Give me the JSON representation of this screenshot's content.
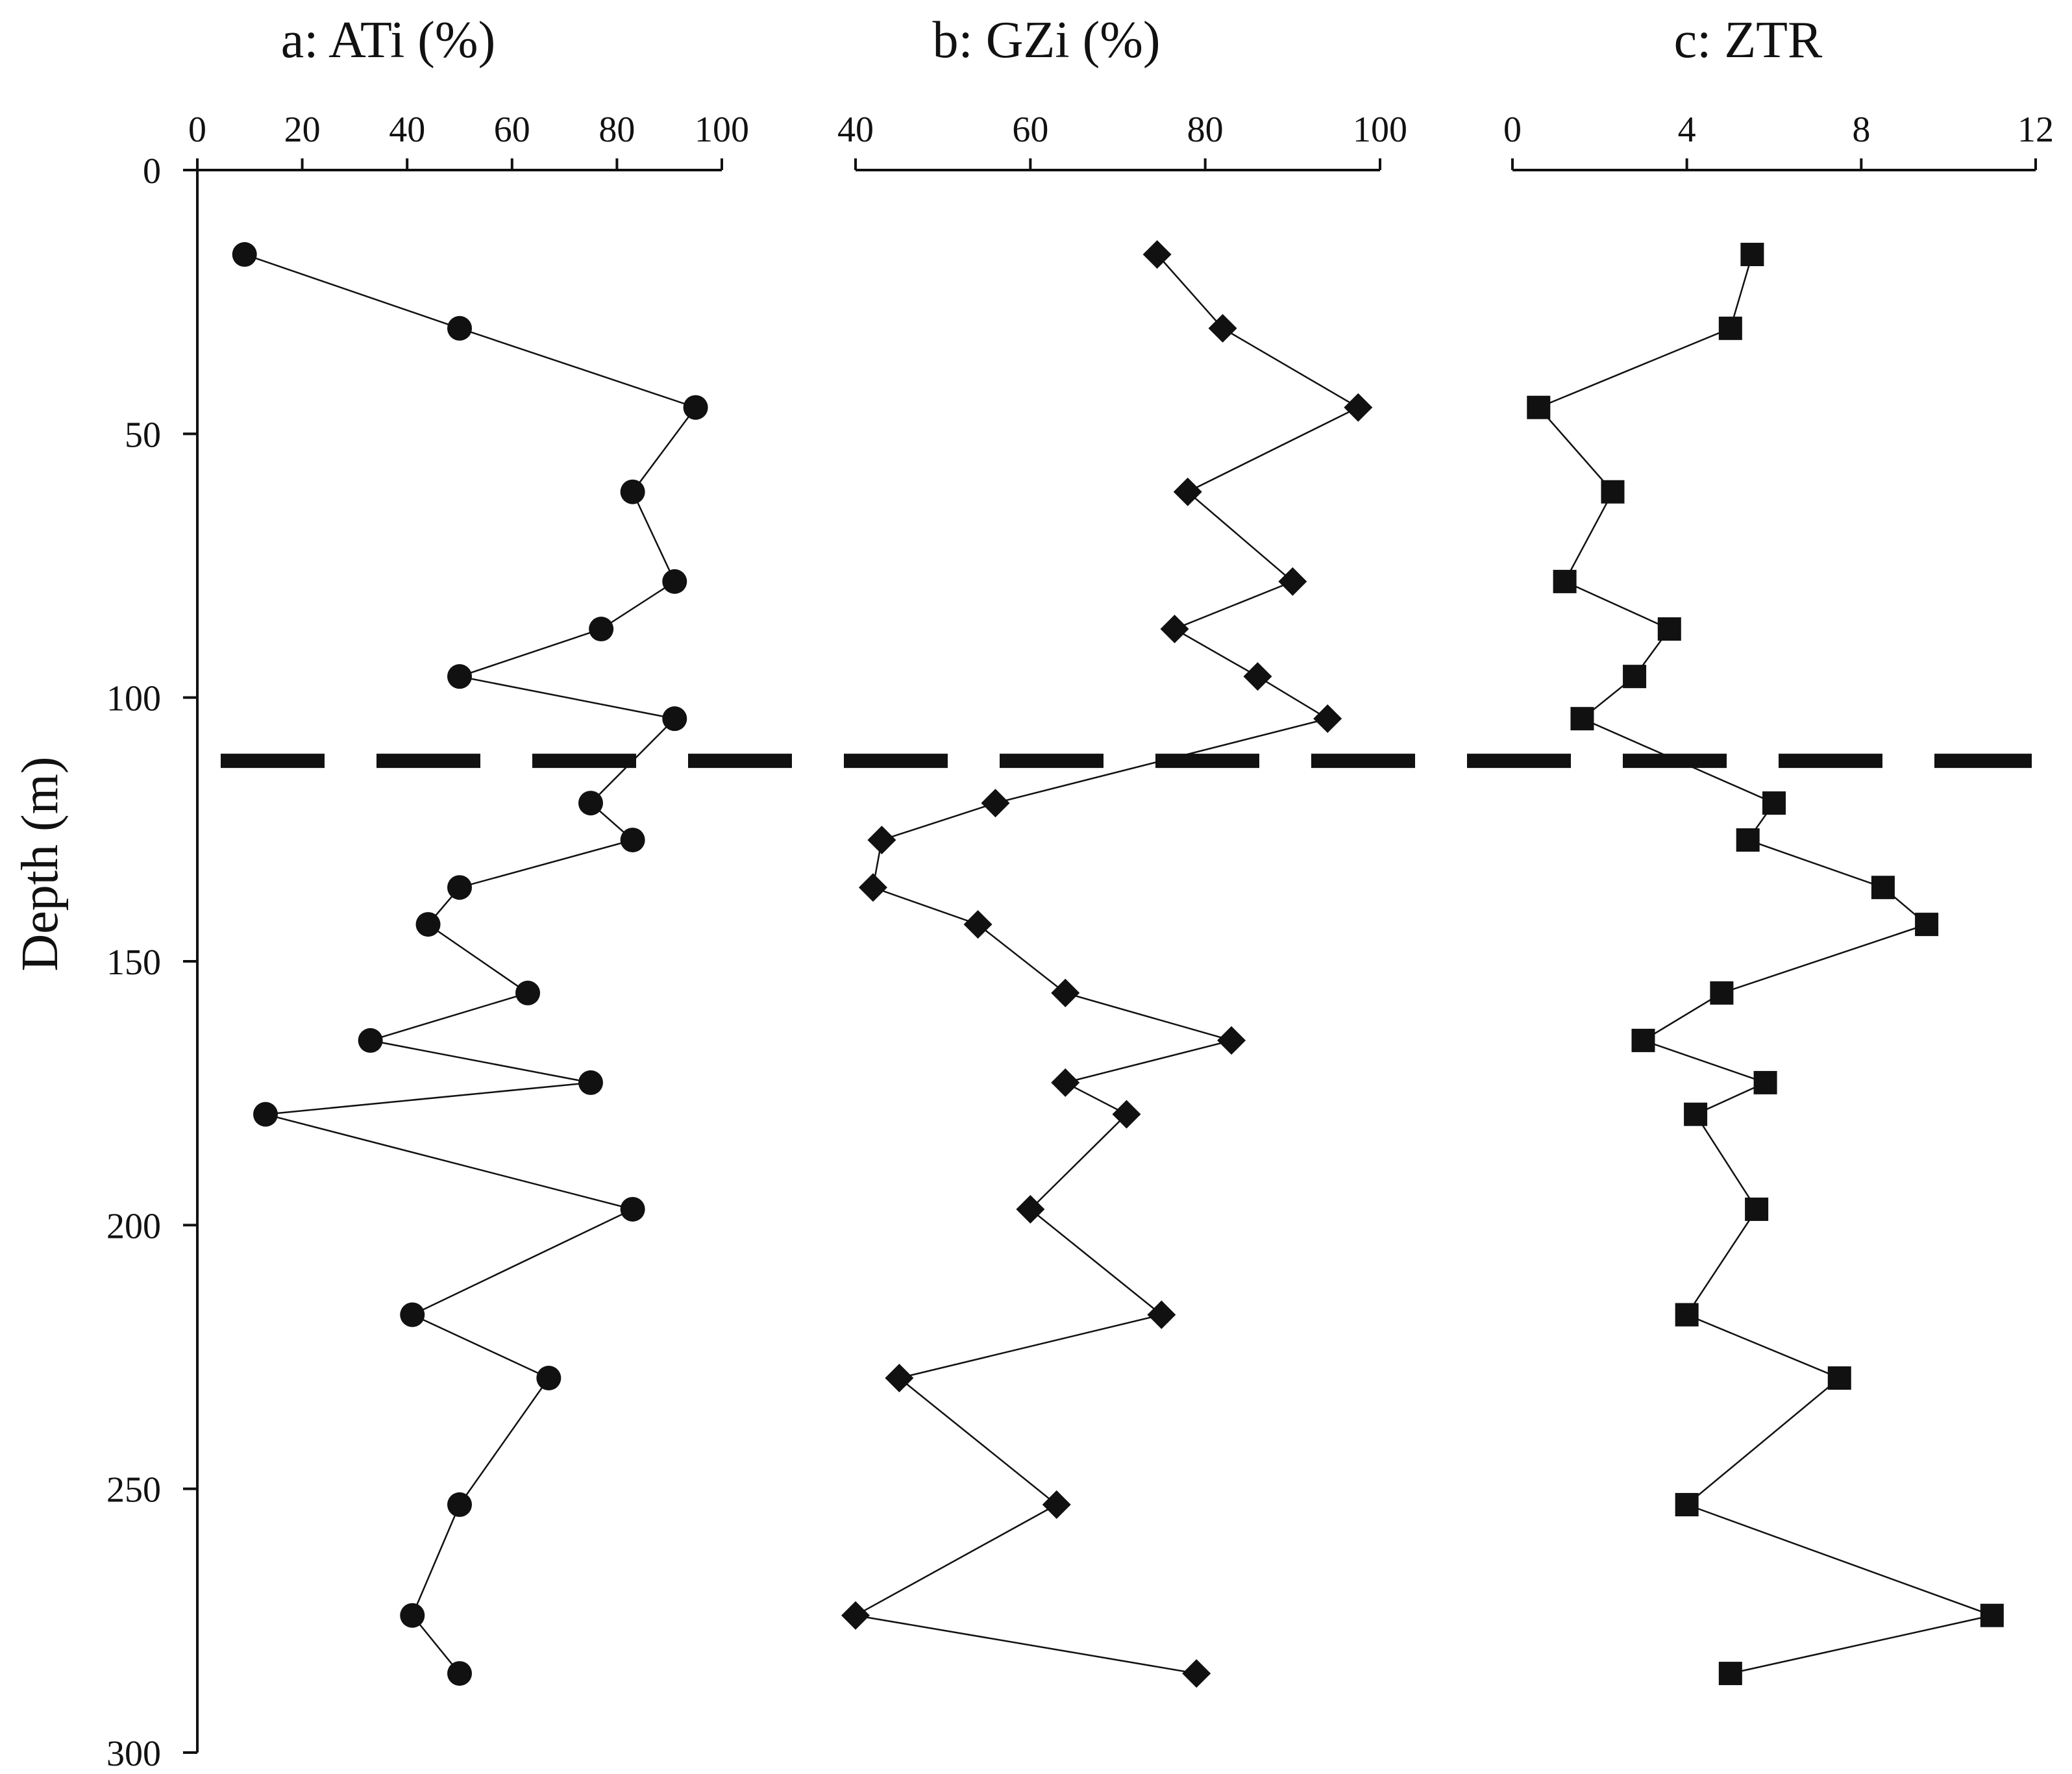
{
  "chart_data": {
    "type": "scatter",
    "ylabel": "Depth (m)",
    "ylim": [
      0,
      300
    ],
    "yticks": [
      0,
      50,
      100,
      150,
      200,
      250,
      300
    ],
    "boundary_depth": 112,
    "panels": [
      {
        "id": "a",
        "title": "a: ATi (%)",
        "xlim": [
          0,
          100
        ],
        "xticks": [
          0,
          20,
          40,
          60,
          80,
          100
        ],
        "marker": "circle",
        "points": [
          {
            "x": 9,
            "depth": 16
          },
          {
            "x": 50,
            "depth": 30
          },
          {
            "x": 95,
            "depth": 45
          },
          {
            "x": 83,
            "depth": 61
          },
          {
            "x": 91,
            "depth": 78
          },
          {
            "x": 77,
            "depth": 87
          },
          {
            "x": 50,
            "depth": 96
          },
          {
            "x": 91,
            "depth": 104
          },
          {
            "x": 75,
            "depth": 120
          },
          {
            "x": 83,
            "depth": 127
          },
          {
            "x": 50,
            "depth": 136
          },
          {
            "x": 44,
            "depth": 143
          },
          {
            "x": 63,
            "depth": 156
          },
          {
            "x": 33,
            "depth": 165
          },
          {
            "x": 75,
            "depth": 173
          },
          {
            "x": 13,
            "depth": 179
          },
          {
            "x": 83,
            "depth": 197
          },
          {
            "x": 41,
            "depth": 217
          },
          {
            "x": 67,
            "depth": 229
          },
          {
            "x": 50,
            "depth": 253
          },
          {
            "x": 41,
            "depth": 274
          },
          {
            "x": 50,
            "depth": 285
          }
        ]
      },
      {
        "id": "b",
        "title": "b: GZi (%)",
        "xlim": [
          40,
          100
        ],
        "xticks": [
          40,
          60,
          80,
          100
        ],
        "marker": "diamond",
        "points": [
          {
            "x": 74.5,
            "depth": 16
          },
          {
            "x": 82,
            "depth": 30
          },
          {
            "x": 97.5,
            "depth": 45
          },
          {
            "x": 78,
            "depth": 61
          },
          {
            "x": 90,
            "depth": 78
          },
          {
            "x": 76.5,
            "depth": 87
          },
          {
            "x": 86,
            "depth": 96
          },
          {
            "x": 94,
            "depth": 104
          },
          {
            "x": 56,
            "depth": 120
          },
          {
            "x": 43,
            "depth": 127
          },
          {
            "x": 42,
            "depth": 136
          },
          {
            "x": 54,
            "depth": 143
          },
          {
            "x": 64,
            "depth": 156
          },
          {
            "x": 83,
            "depth": 165
          },
          {
            "x": 64,
            "depth": 173
          },
          {
            "x": 71,
            "depth": 179
          },
          {
            "x": 60,
            "depth": 197
          },
          {
            "x": 75,
            "depth": 217
          },
          {
            "x": 45,
            "depth": 229
          },
          {
            "x": 63,
            "depth": 253
          },
          {
            "x": 40,
            "depth": 274
          },
          {
            "x": 79,
            "depth": 285
          }
        ]
      },
      {
        "id": "c",
        "title": "c: ZTR",
        "xlim": [
          0,
          12
        ],
        "xticks": [
          0,
          4,
          8,
          12
        ],
        "marker": "square",
        "points": [
          {
            "x": 5.5,
            "depth": 16
          },
          {
            "x": 5.0,
            "depth": 30
          },
          {
            "x": 0.6,
            "depth": 45
          },
          {
            "x": 2.3,
            "depth": 61
          },
          {
            "x": 1.2,
            "depth": 78
          },
          {
            "x": 3.6,
            "depth": 87
          },
          {
            "x": 2.8,
            "depth": 96
          },
          {
            "x": 1.6,
            "depth": 104
          },
          {
            "x": 6.0,
            "depth": 120
          },
          {
            "x": 5.4,
            "depth": 127
          },
          {
            "x": 8.5,
            "depth": 136
          },
          {
            "x": 9.5,
            "depth": 143
          },
          {
            "x": 4.8,
            "depth": 156
          },
          {
            "x": 3.0,
            "depth": 165
          },
          {
            "x": 5.8,
            "depth": 173
          },
          {
            "x": 4.2,
            "depth": 179
          },
          {
            "x": 5.6,
            "depth": 197
          },
          {
            "x": 4.0,
            "depth": 217
          },
          {
            "x": 7.5,
            "depth": 229
          },
          {
            "x": 4.0,
            "depth": 253
          },
          {
            "x": 11.0,
            "depth": 274
          },
          {
            "x": 5.0,
            "depth": 285
          }
        ]
      }
    ]
  }
}
